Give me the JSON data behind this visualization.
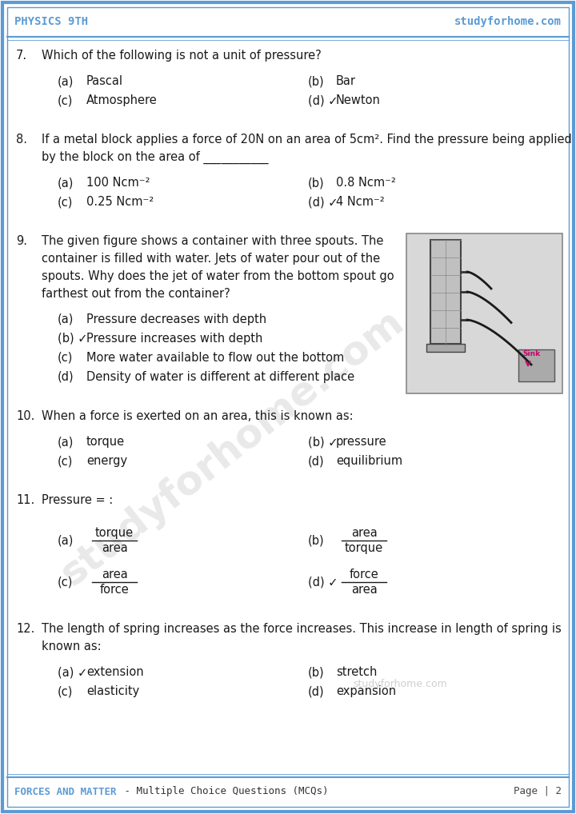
{
  "header_left": "PHYSICS 9TH",
  "header_right": "studyforhome.com",
  "footer_left": "FORCES AND MATTER",
  "footer_left2": " - Multiple Choice Questions (MCQs)",
  "footer_right": "Page | 2",
  "watermark": "studyforhome.com",
  "border_color": "#5B9BD5",
  "header_color": "#5B9BD5",
  "footer_color": "#5B9BD5",
  "text_color": "#1a1a1a",
  "bg_color": "#ffffff",
  "questions": [
    {
      "num": "7.",
      "text": "Which of the following is not a unit of pressure?",
      "opts_2col": true,
      "options": [
        {
          "label": "(a)",
          "text": "Pascal",
          "col": 0
        },
        {
          "label": "(b)",
          "text": "Bar",
          "col": 1
        },
        {
          "label": "(c)",
          "text": "Atmosphere",
          "col": 0
        },
        {
          "label": "(d) ✓",
          "text": "Newton",
          "col": 1
        }
      ],
      "has_image": false,
      "is_fraction": false
    },
    {
      "num": "8.",
      "text": "If a metal block applies a force of 20N on an area of 5cm². Find the pressure being applied\nby the block on the area of ___________",
      "opts_2col": true,
      "options": [
        {
          "label": "(a)",
          "text": "100 Ncm⁻²",
          "col": 0
        },
        {
          "label": "(b)",
          "text": "0.8 Ncm⁻²",
          "col": 1
        },
        {
          "label": "(c)",
          "text": "0.25 Ncm⁻²",
          "col": 0
        },
        {
          "label": "(d) ✓",
          "text": "4 Ncm⁻²",
          "col": 1
        }
      ],
      "has_image": false,
      "is_fraction": false
    },
    {
      "num": "9.",
      "text_lines": [
        "The given figure shows a container with three spouts. The",
        "container is filled with water. Jets of water pour out of the",
        "spouts. Why does the jet of water from the bottom spout go",
        "farthest out from the container?"
      ],
      "opts_2col": false,
      "options": [
        {
          "label": "(a)",
          "text": "Pressure decreases with depth",
          "col": 0
        },
        {
          "label": "(b) ✓",
          "text": "Pressure increases with depth",
          "col": 0
        },
        {
          "label": "(c)",
          "text": "More water available to flow out the bottom",
          "col": 0
        },
        {
          "label": "(d)",
          "text": "Density of water is different at different place",
          "col": 0
        }
      ],
      "has_image": true,
      "is_fraction": false
    },
    {
      "num": "10.",
      "text": "When a force is exerted on an area, this is known as:",
      "opts_2col": true,
      "options": [
        {
          "label": "(a)",
          "text": "torque",
          "col": 0
        },
        {
          "label": "(b) ✓",
          "text": "pressure",
          "col": 1
        },
        {
          "label": "(c)",
          "text": "energy",
          "col": 0
        },
        {
          "label": "(d)",
          "text": "equilibrium",
          "col": 1
        }
      ],
      "has_image": false,
      "is_fraction": false
    },
    {
      "num": "11.",
      "text": "Pressure = :",
      "opts_2col": true,
      "options": [
        {
          "label": "(a)",
          "frac_num": "torque",
          "frac_den": "area",
          "col": 0
        },
        {
          "label": "(b)",
          "frac_num": "area",
          "frac_den": "torque",
          "col": 1
        },
        {
          "label": "(c)",
          "frac_num": "area",
          "frac_den": "force",
          "col": 0
        },
        {
          "label": "(d) ✓",
          "frac_num": "force",
          "frac_den": "area",
          "col": 1
        }
      ],
      "has_image": false,
      "is_fraction": true
    },
    {
      "num": "12.",
      "text": "The length of spring increases as the force increases. This increase in length of spring is\nknown as:",
      "opts_2col": true,
      "options": [
        {
          "label": "(a) ✓",
          "text": "extension",
          "col": 0
        },
        {
          "label": "(b)",
          "text": "stretch",
          "col": 1
        },
        {
          "label": "(c)",
          "text": "elasticity",
          "col": 0
        },
        {
          "label": "(d)",
          "text": "expansion",
          "col": 1
        }
      ],
      "has_image": false,
      "is_fraction": false
    }
  ]
}
